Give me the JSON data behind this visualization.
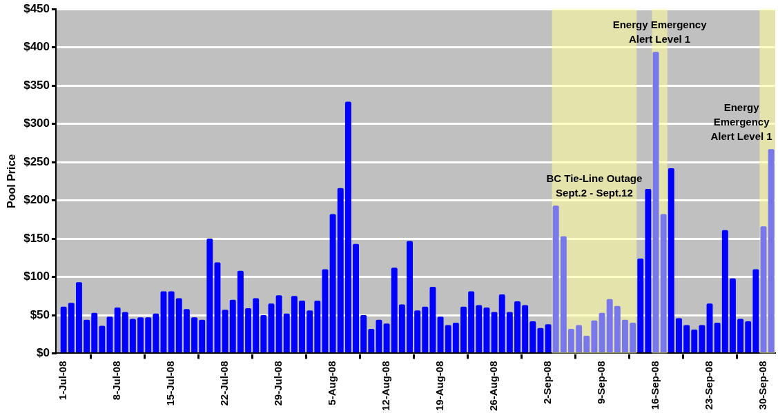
{
  "chart_data": {
    "type": "bar",
    "ylabel": "Pool Price",
    "x": [
      "--07-01",
      "--07-02",
      "--07-03",
      "--07-04",
      "--07-05",
      "--07-06",
      "--07-07",
      "--07-08",
      "--07-09",
      "--07-10",
      "--07-11",
      "--07-12",
      "--07-13",
      "--07-14",
      "--07-15",
      "--07-16",
      "--07-17",
      "--07-18",
      "--07-19",
      "--07-20",
      "--07-21",
      "--07-22",
      "--07-23",
      "--07-24",
      "--07-25",
      "--07-26",
      "--07-27",
      "--07-28",
      "--07-29",
      "--07-30",
      "--07-31",
      "--08-01",
      "--08-02",
      "--08-03",
      "--08-04",
      "--08-05",
      "--08-06",
      "--08-07",
      "--08-08",
      "--08-09",
      "--08-10",
      "--08-11",
      "--08-12",
      "--08-13",
      "--08-14",
      "--08-15",
      "--08-16",
      "--08-17",
      "--08-18",
      "--08-19",
      "--08-20",
      "--08-21",
      "--08-22",
      "--08-23",
      "--08-24",
      "--08-25",
      "--08-26",
      "--08-27",
      "--08-28",
      "--08-29",
      "--08-30",
      "--08-31",
      "--09-01",
      "--09-02",
      "--09-03",
      "--09-04",
      "--09-05",
      "--09-06",
      "--09-07",
      "--09-08",
      "--09-09",
      "--09-10",
      "--09-11",
      "--09-12",
      "--09-13",
      "--09-14",
      "--09-15",
      "--09-16",
      "--09-17",
      "--09-18",
      "--09-19",
      "--09-20",
      "--09-21",
      "--09-22",
      "--09-23",
      "--09-24",
      "--09-25",
      "--09-26",
      "--09-27",
      "--09-28",
      "--09-29",
      "--09-30",
      "--10-01"
    ],
    "series": [
      {
        "color": "#0000ff",
        "values": [
          61,
          66,
          93,
          44,
          53,
          36,
          48,
          60,
          54,
          45,
          47,
          47,
          52,
          81,
          81,
          72,
          58,
          47,
          44,
          150,
          119,
          57,
          70,
          108,
          59,
          72,
          50,
          65,
          76,
          52,
          75,
          69,
          56,
          69,
          110,
          182,
          216,
          329,
          143,
          50,
          32,
          44,
          39,
          112,
          64,
          147,
          56,
          61,
          87,
          48,
          37,
          40,
          61,
          81,
          63,
          60,
          54,
          77,
          54,
          68,
          63,
          42,
          33,
          38,
          null,
          null,
          null,
          null,
          null,
          null,
          null,
          null,
          null,
          null,
          null,
          124,
          215,
          null,
          null,
          242,
          46,
          37,
          31,
          37,
          65,
          40,
          161,
          98,
          45,
          42,
          110,
          null,
          null
        ]
      },
      {
        "color": "#7878ec",
        "values": [
          null,
          null,
          null,
          null,
          null,
          null,
          null,
          null,
          null,
          null,
          null,
          null,
          null,
          null,
          null,
          null,
          null,
          null,
          null,
          null,
          null,
          null,
          null,
          null,
          null,
          null,
          null,
          null,
          null,
          null,
          null,
          null,
          null,
          null,
          null,
          null,
          null,
          null,
          null,
          null,
          null,
          null,
          null,
          null,
          null,
          null,
          null,
          null,
          null,
          null,
          null,
          null,
          null,
          null,
          null,
          null,
          null,
          null,
          null,
          null,
          null,
          null,
          null,
          null,
          193,
          153,
          32,
          37,
          23,
          43,
          53,
          71,
          62,
          44,
          40,
          null,
          null,
          394,
          182,
          null,
          null,
          null,
          null,
          null,
          null,
          null,
          null,
          null,
          null,
          null,
          null,
          166,
          267
        ]
      }
    ],
    "xlim": [
      "--06-30",
      "--10-01T12:00"
    ],
    "xticks": [
      {
        "value": "--07-01",
        "label": "1-Jul-08"
      },
      {
        "value": "--07-08",
        "label": "8-Jul-08"
      },
      {
        "value": "--07-15",
        "label": "15-Jul-08"
      },
      {
        "value": "--07-22",
        "label": "22-Jul-08"
      },
      {
        "value": "--07-29",
        "label": "29-Jul-08"
      },
      {
        "value": "--08-05",
        "label": "5-Aug-08"
      },
      {
        "value": "--08-12",
        "label": "12-Aug-08"
      },
      {
        "value": "--08-19",
        "label": "19-Aug-08"
      },
      {
        "value": "--08-26",
        "label": "26-Aug-08"
      },
      {
        "value": "--09-02",
        "label": "2-Sep-08"
      },
      {
        "value": "--09-09",
        "label": "9-Sep-08"
      },
      {
        "value": "--09-16",
        "label": "16-Sep-08"
      },
      {
        "value": "--09-23",
        "label": "23-Sep-08"
      },
      {
        "value": "--09-30",
        "label": "30-Sep-08"
      }
    ],
    "ylim": [
      0,
      450
    ],
    "yticks": [
      {
        "value": 0,
        "label": "$0"
      },
      {
        "value": 50,
        "label": "$50"
      },
      {
        "value": 100,
        "label": "$100"
      },
      {
        "value": 150,
        "label": "$150"
      },
      {
        "value": 200,
        "label": "$200"
      },
      {
        "value": 250,
        "label": "$250"
      },
      {
        "value": 300,
        "label": "$300"
      },
      {
        "value": 350,
        "label": "$350"
      },
      {
        "value": 400,
        "label": "$400"
      },
      {
        "value": 450,
        "label": "$450"
      }
    ],
    "grid": "y",
    "bands": [
      {
        "axis": "x",
        "from": "--09-02T12:00",
        "to": "--09-13T12:00",
        "color": "#ffff99"
      },
      {
        "axis": "x",
        "from": "--09-15T12:00",
        "to": "--09-17T12:00",
        "color": "#ffff99"
      },
      {
        "axis": "x",
        "from": "--09-29T12:00",
        "to": "--10-01T12:00",
        "color": "#ffff99"
      }
    ],
    "annotations": [
      "BC Tie-Line Outage\nSept.2 - Sept.12",
      "Energy Emergency\nAlert Level 1",
      "Energy\nEmergency\nAlert Level 1"
    ]
  }
}
